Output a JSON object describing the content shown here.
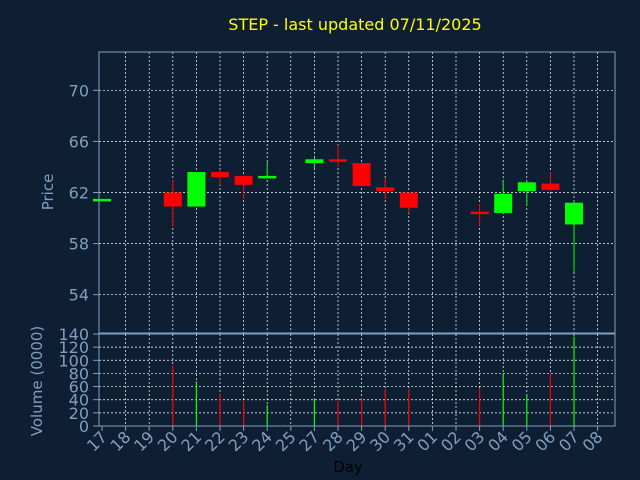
{
  "chart_data": [
    {
      "type": "candlestick",
      "title": "STEP - last updated 07/11/2025",
      "ylabel": "Price",
      "ylim": [
        51,
        73
      ],
      "yticks": [
        54,
        58,
        62,
        66,
        70
      ],
      "grid": true,
      "up_color": "#00ff00",
      "down_color": "#ff0000",
      "categories": [
        "17",
        "18",
        "19",
        "20",
        "21",
        "22",
        "23",
        "24",
        "25",
        "27",
        "28",
        "29",
        "30",
        "31",
        "01",
        "02",
        "03",
        "04",
        "05",
        "06",
        "07",
        "08"
      ],
      "candles": [
        {
          "x": "17",
          "open": 61.5,
          "high": 61.5,
          "low": 61.5,
          "close": 61.5
        },
        {
          "x": "20",
          "open": 62.0,
          "high": 63.0,
          "low": 59.3,
          "close": 60.9
        },
        {
          "x": "21",
          "open": 60.9,
          "high": 63.6,
          "low": 60.9,
          "close": 63.6
        },
        {
          "x": "22",
          "open": 63.6,
          "high": 63.8,
          "low": 62.6,
          "close": 63.2
        },
        {
          "x": "23",
          "open": 63.3,
          "high": 63.3,
          "low": 61.5,
          "close": 62.6
        },
        {
          "x": "24",
          "open": 63.2,
          "high": 64.4,
          "low": 63.2,
          "close": 63.3
        },
        {
          "x": "27",
          "open": 64.3,
          "high": 64.7,
          "low": 63.9,
          "close": 64.6
        },
        {
          "x": "28",
          "open": 64.6,
          "high": 65.7,
          "low": 64.0,
          "close": 64.5
        },
        {
          "x": "29",
          "open": 64.3,
          "high": 64.3,
          "low": 62.5,
          "close": 62.5
        },
        {
          "x": "30",
          "open": 62.4,
          "high": 63.1,
          "low": 61.5,
          "close": 62.1
        },
        {
          "x": "31",
          "open": 62.0,
          "high": 62.0,
          "low": 60.4,
          "close": 60.8
        },
        {
          "x": "03",
          "open": 60.5,
          "high": 61.1,
          "low": 59.4,
          "close": 60.4
        },
        {
          "x": "04",
          "open": 60.4,
          "high": 63.0,
          "low": 60.4,
          "close": 61.9
        },
        {
          "x": "05",
          "open": 62.1,
          "high": 62.9,
          "low": 61.0,
          "close": 62.8
        },
        {
          "x": "06",
          "open": 62.7,
          "high": 63.6,
          "low": 62.1,
          "close": 62.2
        },
        {
          "x": "07",
          "open": 59.5,
          "high": 61.3,
          "low": 55.8,
          "close": 61.2
        }
      ]
    },
    {
      "type": "bar",
      "ylabel": "Volume (0000)",
      "xlabel": "Day",
      "ylim": [
        0,
        140
      ],
      "yticks": [
        0,
        20,
        40,
        60,
        80,
        100,
        120,
        140
      ],
      "grid": true,
      "categories": [
        "17",
        "18",
        "19",
        "20",
        "21",
        "22",
        "23",
        "24",
        "25",
        "27",
        "28",
        "29",
        "30",
        "31",
        "01",
        "02",
        "03",
        "04",
        "05",
        "06",
        "07",
        "08"
      ],
      "values": [
        {
          "x": "20",
          "value": 92,
          "color": "#ff0000"
        },
        {
          "x": "21",
          "value": 68,
          "color": "#00ff00"
        },
        {
          "x": "22",
          "value": 48,
          "color": "#ff0000"
        },
        {
          "x": "23",
          "value": 38,
          "color": "#ff0000"
        },
        {
          "x": "24",
          "value": 32,
          "color": "#00ff00"
        },
        {
          "x": "27",
          "value": 42,
          "color": "#00ff00"
        },
        {
          "x": "28",
          "value": 38,
          "color": "#ff0000"
        },
        {
          "x": "29",
          "value": 42,
          "color": "#ff0000"
        },
        {
          "x": "30",
          "value": 56,
          "color": "#ff0000"
        },
        {
          "x": "31",
          "value": 56,
          "color": "#ff0000"
        },
        {
          "x": "03",
          "value": 58,
          "color": "#ff0000"
        },
        {
          "x": "04",
          "value": 80,
          "color": "#00ff00"
        },
        {
          "x": "05",
          "value": 48,
          "color": "#00ff00"
        },
        {
          "x": "06",
          "value": 80,
          "color": "#ff0000"
        },
        {
          "x": "07",
          "value": 136,
          "color": "#00ff00"
        }
      ]
    }
  ]
}
